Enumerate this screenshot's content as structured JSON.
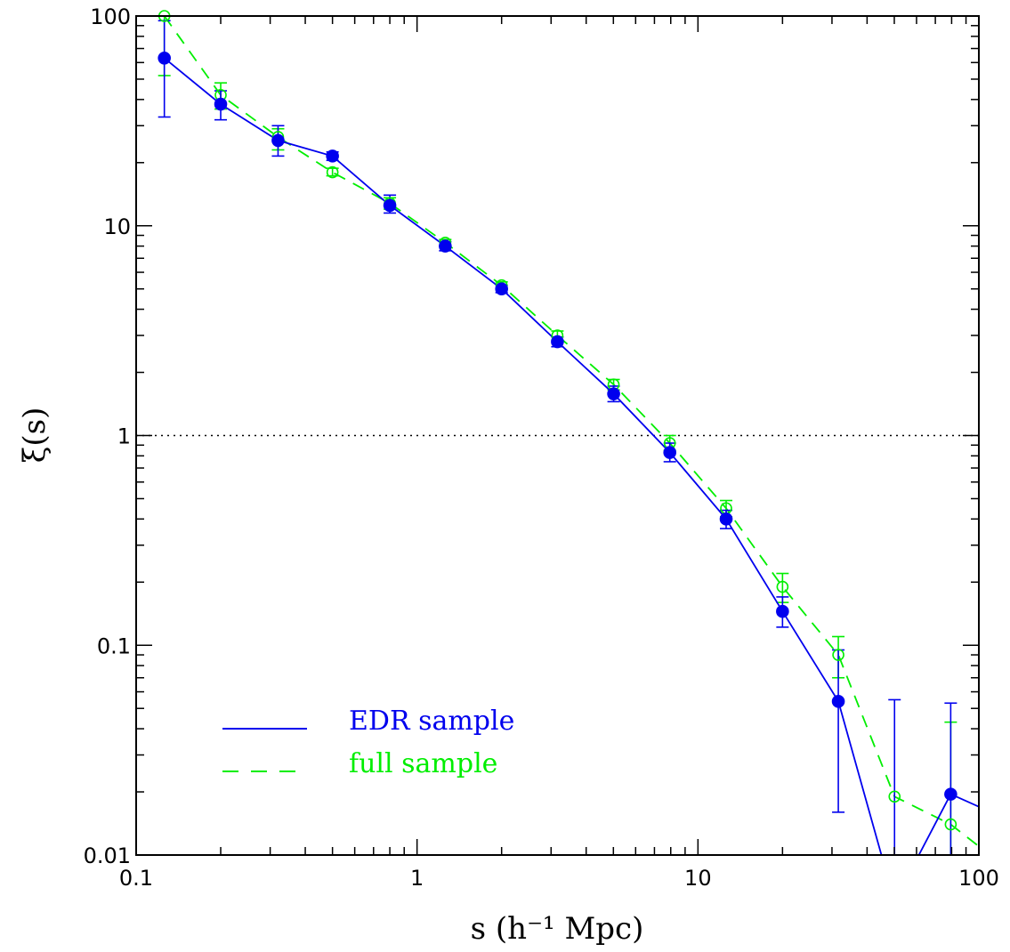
{
  "chart_data": {
    "type": "line",
    "xlabel": "s (h⁻¹ Mpc)",
    "ylabel": "ξ(s)",
    "x_scale": "log",
    "y_scale": "log",
    "xlim": [
      0.1,
      100
    ],
    "ylim": [
      0.01,
      100
    ],
    "x_ticks": [
      {
        "value": 0.1,
        "label": "0.1"
      },
      {
        "value": 1,
        "label": "1"
      },
      {
        "value": 10,
        "label": "10"
      },
      {
        "value": 100,
        "label": "100"
      }
    ],
    "y_ticks": [
      {
        "value": 0.01,
        "label": "0.01"
      },
      {
        "value": 0.1,
        "label": "0.1"
      },
      {
        "value": 1,
        "label": "1"
      },
      {
        "value": 10,
        "label": "10"
      },
      {
        "value": 100,
        "label": "100"
      }
    ],
    "reference_line": {
      "y": 1,
      "style": "dotted",
      "color": "#000000"
    },
    "legend_position": "bottom-left",
    "series": [
      {
        "name": "EDR sample",
        "color": "#0000ee",
        "line_style": "solid",
        "marker": "filled-circle",
        "points": [
          {
            "x": 0.126,
            "y": 63,
            "yerr": [
              33,
              95
            ]
          },
          {
            "x": 0.2,
            "y": 38,
            "yerr": [
              32,
              44
            ]
          },
          {
            "x": 0.32,
            "y": 25.5,
            "yerr": [
              21.5,
              30
            ]
          },
          {
            "x": 0.5,
            "y": 21.5,
            "yerr": [
              20.5,
              22.5
            ]
          },
          {
            "x": 0.8,
            "y": 12.5,
            "yerr": [
              11.5,
              14
            ]
          },
          {
            "x": 1.26,
            "y": 8,
            "yerr": [
              7.6,
              8.4
            ]
          },
          {
            "x": 2,
            "y": 5,
            "yerr": [
              4.8,
              5.2
            ]
          },
          {
            "x": 3.16,
            "y": 2.8,
            "yerr": [
              2.65,
              2.95
            ]
          },
          {
            "x": 5.01,
            "y": 1.58,
            "yerr": [
              1.45,
              1.72
            ]
          },
          {
            "x": 7.94,
            "y": 0.83,
            "yerr": [
              0.75,
              0.92
            ]
          },
          {
            "x": 12.6,
            "y": 0.4,
            "yerr": [
              0.36,
              0.44
            ]
          },
          {
            "x": 20,
            "y": 0.145,
            "yerr": [
              0.122,
              0.17
            ]
          },
          {
            "x": 31.6,
            "y": 0.054,
            "yerr": [
              0.016,
              0.095
            ]
          },
          {
            "x": 50.1,
            "y": 0.006,
            "yerr": [
              0.005,
              0.055
            ]
          },
          {
            "x": 79.4,
            "y": 0.0195,
            "yerr": [
              0.005,
              0.053
            ]
          },
          {
            "x": 100,
            "y": 0.017,
            "yerr": null
          }
        ]
      },
      {
        "name": "full sample",
        "color": "#00ee00",
        "line_style": "dashed",
        "marker": "open-circle",
        "points": [
          {
            "x": 0.126,
            "y": 100,
            "yerr": [
              52,
              100
            ]
          },
          {
            "x": 0.2,
            "y": 42,
            "yerr": [
              36,
              48
            ]
          },
          {
            "x": 0.32,
            "y": 26.5,
            "yerr": [
              23,
              29
            ]
          },
          {
            "x": 0.5,
            "y": 18,
            "yerr": [
              17.3,
              18.8
            ]
          },
          {
            "x": 0.8,
            "y": 12.8,
            "yerr": [
              12,
              13.6
            ]
          },
          {
            "x": 1.26,
            "y": 8.3,
            "yerr": [
              8,
              8.6
            ]
          },
          {
            "x": 2,
            "y": 5.2,
            "yerr": [
              5,
              5.4
            ]
          },
          {
            "x": 3.16,
            "y": 3,
            "yerr": [
              2.85,
              3.15
            ]
          },
          {
            "x": 5.01,
            "y": 1.75,
            "yerr": [
              1.65,
              1.85
            ]
          },
          {
            "x": 7.94,
            "y": 0.92,
            "yerr": [
              0.85,
              1
            ]
          },
          {
            "x": 12.6,
            "y": 0.45,
            "yerr": [
              0.41,
              0.49
            ]
          },
          {
            "x": 20,
            "y": 0.19,
            "yerr": [
              0.16,
              0.22
            ]
          },
          {
            "x": 31.6,
            "y": 0.09,
            "yerr": [
              0.07,
              0.11
            ]
          },
          {
            "x": 50.1,
            "y": 0.019,
            "yerr": null
          },
          {
            "x": 79.4,
            "y": 0.014,
            "yerr": [
              0.007,
              0.043
            ]
          },
          {
            "x": 100,
            "y": 0.011,
            "yerr": null
          }
        ]
      }
    ]
  }
}
